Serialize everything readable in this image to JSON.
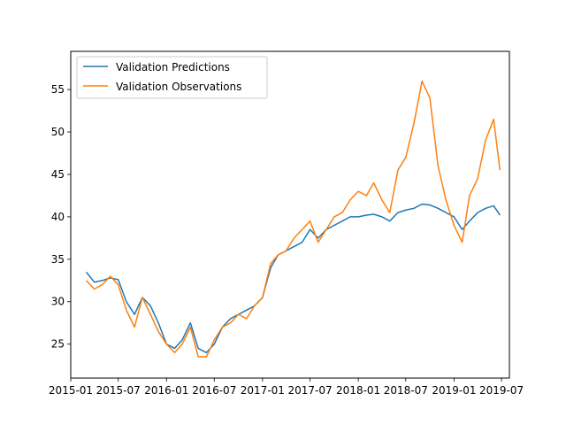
{
  "chart_data": {
    "type": "line",
    "title": "",
    "xlabel": "",
    "ylabel": "",
    "xlim": [
      "2015-01-01",
      "2019-07-31"
    ],
    "ylim": [
      21,
      59.5
    ],
    "x_ticks": [
      {
        "value": "2015-01-01",
        "label": "2015-01"
      },
      {
        "value": "2015-07-01",
        "label": "2015-07"
      },
      {
        "value": "2016-01-01",
        "label": "2016-01"
      },
      {
        "value": "2016-07-01",
        "label": "2016-07"
      },
      {
        "value": "2017-01-01",
        "label": "2017-01"
      },
      {
        "value": "2017-07-01",
        "label": "2017-07"
      },
      {
        "value": "2018-01-01",
        "label": "2018-01"
      },
      {
        "value": "2018-07-01",
        "label": "2018-07"
      },
      {
        "value": "2019-01-01",
        "label": "2019-01"
      },
      {
        "value": "2019-07-01",
        "label": "2019-07"
      }
    ],
    "y_ticks": [
      25,
      30,
      35,
      40,
      45,
      50,
      55
    ],
    "grid": false,
    "legend": {
      "placement": "top-left"
    },
    "x": [
      "2015-03-01",
      "2015-04-01",
      "2015-05-01",
      "2015-06-01",
      "2015-07-01",
      "2015-08-01",
      "2015-09-01",
      "2015-10-01",
      "2015-11-01",
      "2015-12-01",
      "2016-01-01",
      "2016-02-01",
      "2016-03-01",
      "2016-04-01",
      "2016-05-01",
      "2016-06-01",
      "2016-07-01",
      "2016-08-01",
      "2016-09-01",
      "2016-10-01",
      "2016-11-01",
      "2016-12-01",
      "2017-01-01",
      "2017-02-01",
      "2017-03-01",
      "2017-04-01",
      "2017-05-01",
      "2017-06-01",
      "2017-07-01",
      "2017-08-01",
      "2017-09-01",
      "2017-10-01",
      "2017-11-01",
      "2017-12-01",
      "2018-01-01",
      "2018-02-01",
      "2018-03-01",
      "2018-04-01",
      "2018-05-01",
      "2018-06-01",
      "2018-07-01",
      "2018-08-01",
      "2018-09-01",
      "2018-10-01",
      "2018-11-01",
      "2018-12-01",
      "2019-01-01",
      "2019-02-01",
      "2019-03-01",
      "2019-04-01",
      "2019-05-01",
      "2019-06-01",
      "2019-06-25"
    ],
    "series": [
      {
        "name": "Validation Predictions",
        "color": "#1f77b4",
        "values": [
          33.5,
          32.3,
          32.5,
          32.8,
          32.6,
          30.0,
          28.5,
          30.5,
          29.5,
          27.5,
          25.0,
          24.5,
          25.5,
          27.5,
          24.5,
          24.0,
          25.0,
          27.0,
          28.0,
          28.5,
          29.0,
          29.5,
          30.5,
          34.0,
          35.5,
          36.0,
          36.5,
          37.0,
          38.5,
          37.5,
          38.5,
          39.0,
          39.5,
          40.0,
          40.0,
          40.2,
          40.3,
          40.0,
          39.5,
          40.5,
          40.8,
          41.0,
          41.5,
          41.4,
          41.0,
          40.5,
          40.0,
          38.5,
          39.5,
          40.5,
          41.0,
          41.3,
          40.2
        ]
      },
      {
        "name": "Validation Observations",
        "color": "#ff7f0e",
        "values": [
          32.5,
          31.5,
          32.0,
          33.0,
          32.0,
          29.0,
          27.0,
          30.5,
          28.5,
          26.5,
          25.0,
          24.0,
          25.0,
          27.0,
          23.5,
          23.5,
          25.5,
          27.0,
          27.5,
          28.5,
          28.0,
          29.5,
          30.5,
          34.5,
          35.5,
          36.0,
          37.5,
          38.5,
          39.5,
          37.0,
          38.5,
          40.0,
          40.5,
          42.0,
          43.0,
          42.5,
          44.0,
          42.0,
          40.5,
          45.5,
          47.0,
          51.0,
          56.0,
          54.0,
          46.0,
          42.0,
          39.0,
          37.0,
          42.5,
          44.5,
          49.0,
          51.5,
          45.5
        ]
      }
    ]
  }
}
